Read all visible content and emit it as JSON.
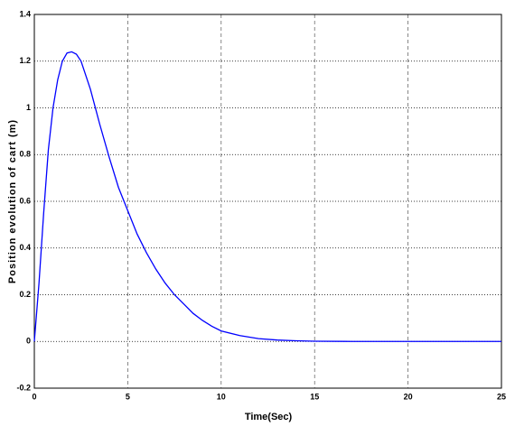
{
  "chart_data": {
    "type": "line",
    "xlabel": "Time(Sec)",
    "ylabel": "Position evolution of cart (m)",
    "x": [
      0,
      0.25,
      0.5,
      0.75,
      1,
      1.25,
      1.5,
      1.75,
      2,
      2.25,
      2.5,
      3,
      3.5,
      4,
      4.5,
      5,
      5.5,
      6,
      6.5,
      7,
      7.5,
      8,
      8.5,
      9,
      9.5,
      10,
      11,
      12,
      13,
      14,
      15,
      17,
      20,
      25
    ],
    "series": [
      {
        "color": "#0000ff",
        "values": [
          0,
          0.25,
          0.55,
          0.82,
          1.0,
          1.12,
          1.2,
          1.235,
          1.24,
          1.23,
          1.2,
          1.08,
          0.93,
          0.79,
          0.66,
          0.56,
          0.46,
          0.38,
          0.31,
          0.25,
          0.2,
          0.16,
          0.12,
          0.09,
          0.065,
          0.045,
          0.025,
          0.012,
          0.006,
          0.003,
          0.001,
          0,
          0,
          0
        ]
      }
    ],
    "xlim": [
      0,
      25
    ],
    "xticks": [
      0,
      5,
      10,
      15,
      20,
      25
    ],
    "ylim": [
      -0.2,
      1.4
    ],
    "yticks": [
      -0.2,
      0,
      0.2,
      0.4,
      0.6,
      0.8,
      1,
      1.2,
      1.4
    ],
    "grid": true
  }
}
